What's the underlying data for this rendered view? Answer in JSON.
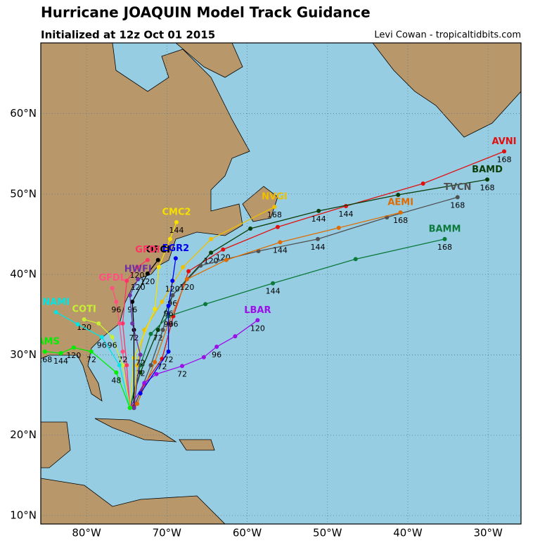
{
  "header": {
    "title": "Hurricane JOAQUIN Model Track Guidance",
    "subtitle": "Initialized at 12z Oct 01 2015",
    "credit": "Levi Cowan - tropicaltidbits.com"
  },
  "map": {
    "lonlim": [
      -85.7,
      -25.9
    ],
    "latlim": [
      8.95,
      68.8
    ],
    "grid": true,
    "lonticks": [
      {
        "value": -80,
        "label": "80°W"
      },
      {
        "value": -70,
        "label": "70°W"
      },
      {
        "value": -60,
        "label": "60°W"
      },
      {
        "value": -50,
        "label": "50°W"
      },
      {
        "value": -40,
        "label": "40°W"
      },
      {
        "value": -30,
        "label": "30°W"
      }
    ],
    "latticks": [
      {
        "value": 10,
        "label": "10°N"
      },
      {
        "value": 20,
        "label": "20°N"
      },
      {
        "value": 30,
        "label": "30°N"
      },
      {
        "value": 40,
        "label": "40°N"
      },
      {
        "value": 50,
        "label": "50°N"
      },
      {
        "value": 60,
        "label": "60°N"
      }
    ],
    "tracks": [
      {
        "name": "AVNI",
        "color": "#e01010",
        "lon": [
          -74.1,
          -72.8,
          -70.6,
          -69.2,
          -67.3,
          -63.0,
          -56.2,
          -47.7,
          -38.1,
          -28.0
        ],
        "lat": [
          23.6,
          26.4,
          29.5,
          34.8,
          40.4,
          43.1,
          45.9,
          48.5,
          51.3,
          55.3
        ],
        "hours": [
          null,
          null,
          72,
          96,
          null,
          120,
          null,
          144,
          null,
          168
        ]
      },
      {
        "name": "BAMD",
        "color": "#0a3d0a",
        "lon": [
          -74.6,
          -73.3,
          -71.1,
          -69.3,
          -64.5,
          -59.6,
          -51.1,
          -41.2,
          -30.1
        ],
        "lat": [
          23.4,
          27.8,
          33.1,
          37.4,
          42.7,
          45.7,
          47.9,
          49.9,
          51.8
        ],
        "hours": [
          null,
          null,
          72,
          96,
          120,
          null,
          144,
          null,
          168
        ]
      },
      {
        "name": "TVCN",
        "color": "#505050",
        "lon": [
          -74.1,
          -72.0,
          -70.5,
          -69.3,
          -65.8,
          -58.6,
          -51.2,
          -42.6,
          -33.8
        ],
        "lat": [
          23.4,
          28.7,
          33.1,
          37.4,
          41.1,
          42.9,
          44.4,
          47.1,
          49.6
        ],
        "hours": [
          null,
          null,
          null,
          null,
          null,
          null,
          144,
          null,
          168
        ]
      },
      {
        "name": "AEMI",
        "color": "#e06c00",
        "lon": [
          -73.7,
          -71.5,
          -69.8,
          -67.5,
          -62.6,
          -55.9,
          -48.6,
          -40.9
        ],
        "lat": [
          23.9,
          29.1,
          33.9,
          39.4,
          41.8,
          44.0,
          45.8,
          47.7
        ],
        "hours": [
          null,
          null,
          null,
          120,
          null,
          144,
          null,
          168
        ]
      },
      {
        "name": "BAMM",
        "color": "#0b7a3a",
        "lon": [
          -74.6,
          -73.3,
          -72.0,
          -69.8,
          -65.2,
          -56.8,
          -46.5,
          -35.4
        ],
        "lat": [
          23.4,
          28.7,
          32.6,
          34.8,
          36.3,
          38.9,
          41.9,
          44.4
        ],
        "hours": [
          null,
          72,
          null,
          96,
          null,
          144,
          null,
          168
        ]
      },
      {
        "name": "LBAR",
        "color": "#9b10e8",
        "lon": [
          -74.6,
          -72.8,
          -71.3,
          -68.1,
          -65.4,
          -63.8,
          -61.5,
          -58.7
        ],
        "lat": [
          23.4,
          26.5,
          27.6,
          28.6,
          29.7,
          31.0,
          32.3,
          34.3
        ],
        "hours": [
          null,
          null,
          null,
          72,
          null,
          96,
          null,
          120
        ]
      },
      {
        "name": "NVGI",
        "color": "#f0c000",
        "lon": [
          -74.1,
          -73.7,
          -72.8,
          -70.6,
          -68.0,
          -64.5,
          -56.6
        ],
        "lat": [
          23.4,
          28.7,
          33.1,
          36.6,
          40.9,
          44.4,
          48.4
        ],
        "hours": [
          null,
          null,
          null,
          null,
          null,
          null,
          168
        ]
      },
      {
        "name": "CMC2",
        "color": "#f5e000",
        "lon": [
          -74.6,
          -74.1,
          -71.5,
          -71.0,
          -69.6,
          -68.8
        ],
        "lat": [
          23.4,
          29.6,
          35.7,
          40.9,
          44.4,
          46.5
        ],
        "hours": [
          null,
          null,
          null,
          null,
          null,
          144
        ]
      },
      {
        "name": "EGR2",
        "color": "#0000ee",
        "lon": [
          -73.3,
          -69.8,
          -69.8,
          -69.3,
          -68.9
        ],
        "lat": [
          25.2,
          30.4,
          36.1,
          39.2,
          42.0
        ],
        "hours": [
          null,
          72,
          96,
          120,
          null
        ]
      },
      {
        "name": "OFCI",
        "color": "#000000",
        "lon": [
          -74.1,
          -74.1,
          -74.3,
          -72.4,
          -71.1
        ],
        "lat": [
          23.4,
          33.1,
          36.6,
          40.1,
          41.8
        ],
        "hours": [
          null,
          72,
          96,
          120,
          null
        ]
      },
      {
        "name": "GFDI",
        "color": "#ff3366",
        "lon": [
          -74.6,
          -75.0,
          -75.5,
          -75.0,
          -73.7,
          -72.4
        ],
        "lat": [
          23.4,
          28.7,
          33.9,
          39.2,
          40.9,
          41.8
        ],
        "hours": [
          null,
          null,
          null,
          null,
          120,
          null
        ]
      },
      {
        "name": "HWFI",
        "color": "#7030a0",
        "lon": [
          -74.1,
          -73.3,
          -74.3,
          -74.6,
          -73.6
        ],
        "lat": [
          23.4,
          30.0,
          33.9,
          37.4,
          39.4
        ],
        "hours": [
          null,
          72,
          null,
          null,
          120
        ]
      },
      {
        "name": "GFDL",
        "color": "#ff5080",
        "lon": [
          -74.6,
          -75.5,
          -75.9,
          -76.3,
          -76.8
        ],
        "lat": [
          23.4,
          30.4,
          33.9,
          36.6,
          38.3
        ],
        "hours": [
          null,
          72,
          null,
          96,
          null
        ]
      },
      {
        "name": "COTI",
        "color": "#c8f032",
        "lon": [
          -74.6,
          -75.5,
          -76.8,
          -78.5,
          -80.3
        ],
        "lat": [
          23.4,
          28.7,
          32.2,
          33.9,
          34.4
        ],
        "hours": [
          null,
          null,
          96,
          null,
          120
        ]
      },
      {
        "name": "NAMI",
        "color": "#00e5e5",
        "lon": [
          -74.6,
          -75.9,
          -78.1,
          -81.1,
          -83.8
        ],
        "lat": [
          23.4,
          28.7,
          32.2,
          33.8,
          35.3
        ],
        "hours": [
          null,
          null,
          96,
          null,
          null
        ]
      },
      {
        "name": "BAMS",
        "color": "#00ee00",
        "lon": [
          -74.6,
          -76.3,
          -79.4,
          -81.6,
          -83.2,
          -85.2
        ],
        "lat": [
          23.4,
          27.8,
          30.4,
          30.9,
          30.2,
          30.4
        ],
        "hours": [
          null,
          48,
          72,
          120,
          144,
          168
        ]
      }
    ]
  }
}
